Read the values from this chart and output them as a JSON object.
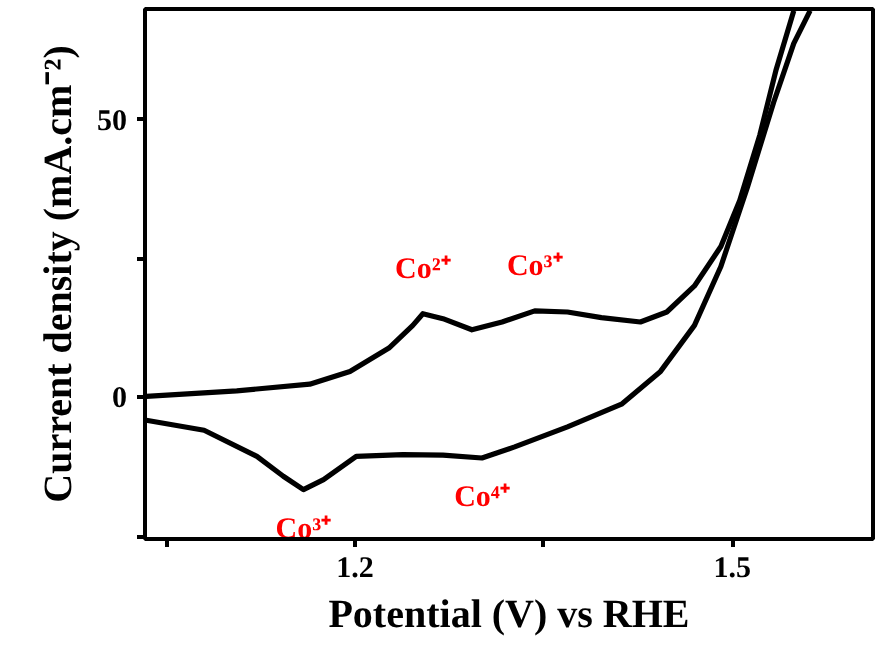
{
  "chart_data": {
    "type": "line",
    "xlabel": "Potential (V) vs RHE",
    "ylabel": "Current density (mA.cm⁻²)",
    "xlim": [
      1.033,
      1.612
    ],
    "xticks": [
      {
        "value": 1.05,
        "label": null
      },
      1.2,
      {
        "value": 1.35,
        "label": null
      },
      1.5
    ],
    "ylim": [
      -25.5,
      70
    ],
    "yticks": [
      {
        "value": -25,
        "label": null
      },
      0,
      {
        "value": 25,
        "label": null
      },
      50
    ],
    "grid": false,
    "marker": "none",
    "line_style": "solid",
    "series": [
      {
        "color": "#000000",
        "x": [
          1.034,
          1.106,
          1.164,
          1.196,
          1.227,
          1.246,
          1.254,
          1.27,
          1.293,
          1.317,
          1.343,
          1.369,
          1.396,
          1.427,
          1.448,
          1.47,
          1.491,
          1.506,
          1.522,
          1.535,
          1.549
        ],
        "values": [
          0.2,
          1.2,
          2.4,
          4.7,
          8.9,
          13.0,
          15.1,
          14.2,
          12.2,
          13.6,
          15.6,
          15.4,
          14.4,
          13.6,
          15.4,
          20.1,
          27.2,
          35.5,
          47.3,
          59.1,
          69.7
        ]
      },
      {
        "color": "#000000",
        "x": [
          1.034,
          1.08,
          1.122,
          1.143,
          1.159,
          1.175,
          1.201,
          1.238,
          1.27,
          1.301,
          1.327,
          1.369,
          1.412,
          1.443,
          1.47,
          1.491,
          1.512,
          1.533,
          1.549,
          1.562
        ],
        "values": [
          -4.1,
          -5.9,
          -10.6,
          -14.2,
          -16.6,
          -14.8,
          -10.6,
          -10.3,
          -10.4,
          -10.9,
          -8.9,
          -5.3,
          -1.2,
          4.7,
          13.0,
          23.6,
          37.8,
          53.2,
          63.8,
          69.7
        ]
      }
    ],
    "annotations": [
      {
        "text": "Co²⁺",
        "x": 1.254,
        "y": 15.1
      },
      {
        "text": "Co³⁺",
        "x": 1.343,
        "y": 15.6
      },
      {
        "text": "Co³⁺",
        "x": 1.159,
        "y": -16.6
      },
      {
        "text": "Co⁴⁺",
        "x": 1.301,
        "y": -10.9
      }
    ]
  }
}
